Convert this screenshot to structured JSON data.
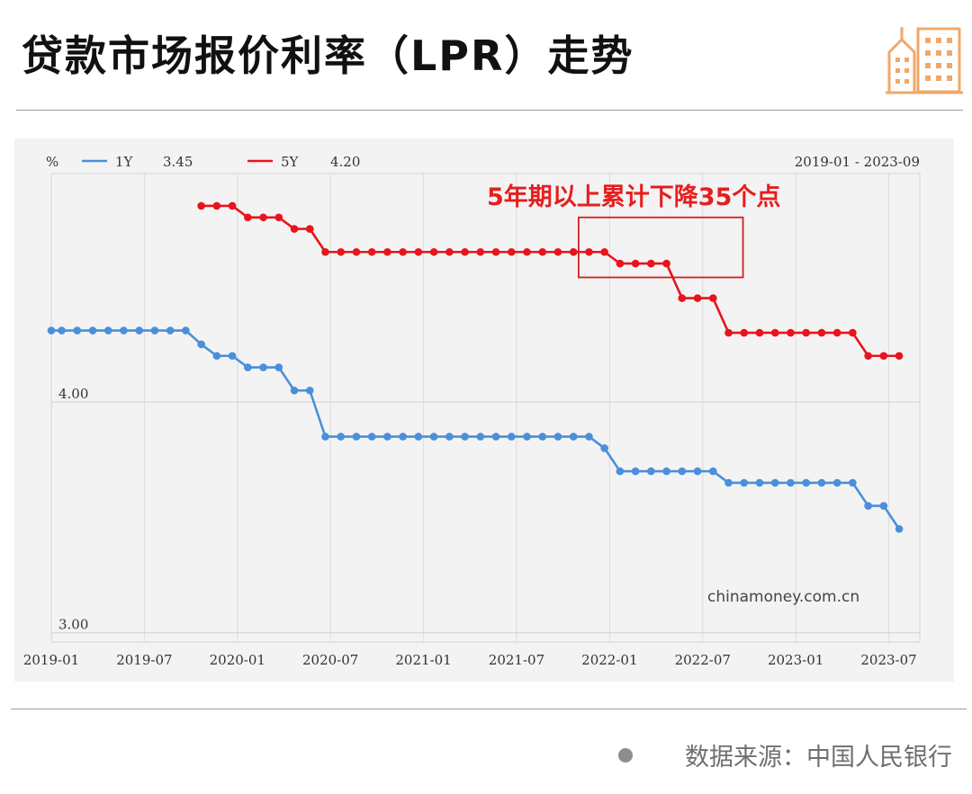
{
  "header": {
    "title": "贷款市场报价利率（LPR）走势"
  },
  "footer": {
    "source": "数据来源：中国人民银行"
  },
  "colors": {
    "series_1y": "#4a8fdc",
    "series_5y": "#e8141d",
    "highlight_box": "#d42020",
    "annotation": "#e61e1e",
    "logo": "#f0a868"
  },
  "chart_data": {
    "type": "line",
    "unit_label": "%",
    "date_range": "2019-01 - 2023-09",
    "watermark_text": "chinamoney.com.cn",
    "annotation": "5年期以上累计下降35个点",
    "x_tick_labels": [
      "2019-01",
      "2019-07",
      "2020-01",
      "2020-07",
      "2021-01",
      "2021-07",
      "2022-01",
      "2022-07",
      "2023-01",
      "2023-07"
    ],
    "y_tick_labels": [
      {
        "value": 4.0,
        "label": "4.00"
      },
      {
        "value": 3.0,
        "label": "3.00"
      }
    ],
    "ylim": [
      2.96,
      4.99
    ],
    "grid": true,
    "highlight_range": {
      "x_start": 34,
      "x_end": 44.6,
      "y_low": 4.54,
      "y_high": 4.8
    },
    "x": [
      0,
      0.67,
      1.67,
      2.67,
      3.67,
      4.67,
      5.67,
      6.67,
      7.67,
      8.67,
      9.67,
      10.67,
      11.67,
      12.67,
      13.67,
      14.67,
      15.67,
      16.67,
      17.67,
      18.67,
      19.67,
      20.67,
      21.67,
      22.67,
      23.67,
      24.67,
      25.67,
      26.67,
      27.67,
      28.67,
      29.67,
      30.67,
      31.67,
      32.67,
      33.67,
      34.67,
      35.67,
      36.67,
      37.67,
      38.67,
      39.67,
      40.67,
      41.67,
      42.67,
      43.67,
      44.67,
      45.67,
      46.67,
      47.67,
      48.67,
      49.67,
      50.67,
      51.67,
      52.67,
      53.67,
      54.67
    ],
    "series": [
      {
        "name": "1Y",
        "latest": "3.45",
        "values": [
          4.31,
          4.31,
          4.31,
          4.31,
          4.31,
          4.31,
          4.31,
          4.31,
          4.31,
          4.31,
          4.25,
          4.2,
          4.2,
          4.15,
          4.15,
          4.15,
          4.05,
          4.05,
          3.85,
          3.85,
          3.85,
          3.85,
          3.85,
          3.85,
          3.85,
          3.85,
          3.85,
          3.85,
          3.85,
          3.85,
          3.85,
          3.85,
          3.85,
          3.85,
          3.85,
          3.85,
          3.8,
          3.7,
          3.7,
          3.7,
          3.7,
          3.7,
          3.7,
          3.7,
          3.65,
          3.65,
          3.65,
          3.65,
          3.65,
          3.65,
          3.65,
          3.65,
          3.65,
          3.55,
          3.55,
          3.45
        ]
      },
      {
        "name": "5Y",
        "latest": "4.20",
        "values": [
          null,
          null,
          null,
          null,
          null,
          null,
          null,
          null,
          null,
          null,
          4.85,
          4.85,
          4.85,
          4.8,
          4.8,
          4.8,
          4.75,
          4.75,
          4.65,
          4.65,
          4.65,
          4.65,
          4.65,
          4.65,
          4.65,
          4.65,
          4.65,
          4.65,
          4.65,
          4.65,
          4.65,
          4.65,
          4.65,
          4.65,
          4.65,
          4.65,
          4.65,
          4.6,
          4.6,
          4.6,
          4.6,
          4.45,
          4.45,
          4.45,
          4.3,
          4.3,
          4.3,
          4.3,
          4.3,
          4.3,
          4.3,
          4.3,
          4.3,
          4.2,
          4.2,
          4.2
        ]
      }
    ]
  }
}
